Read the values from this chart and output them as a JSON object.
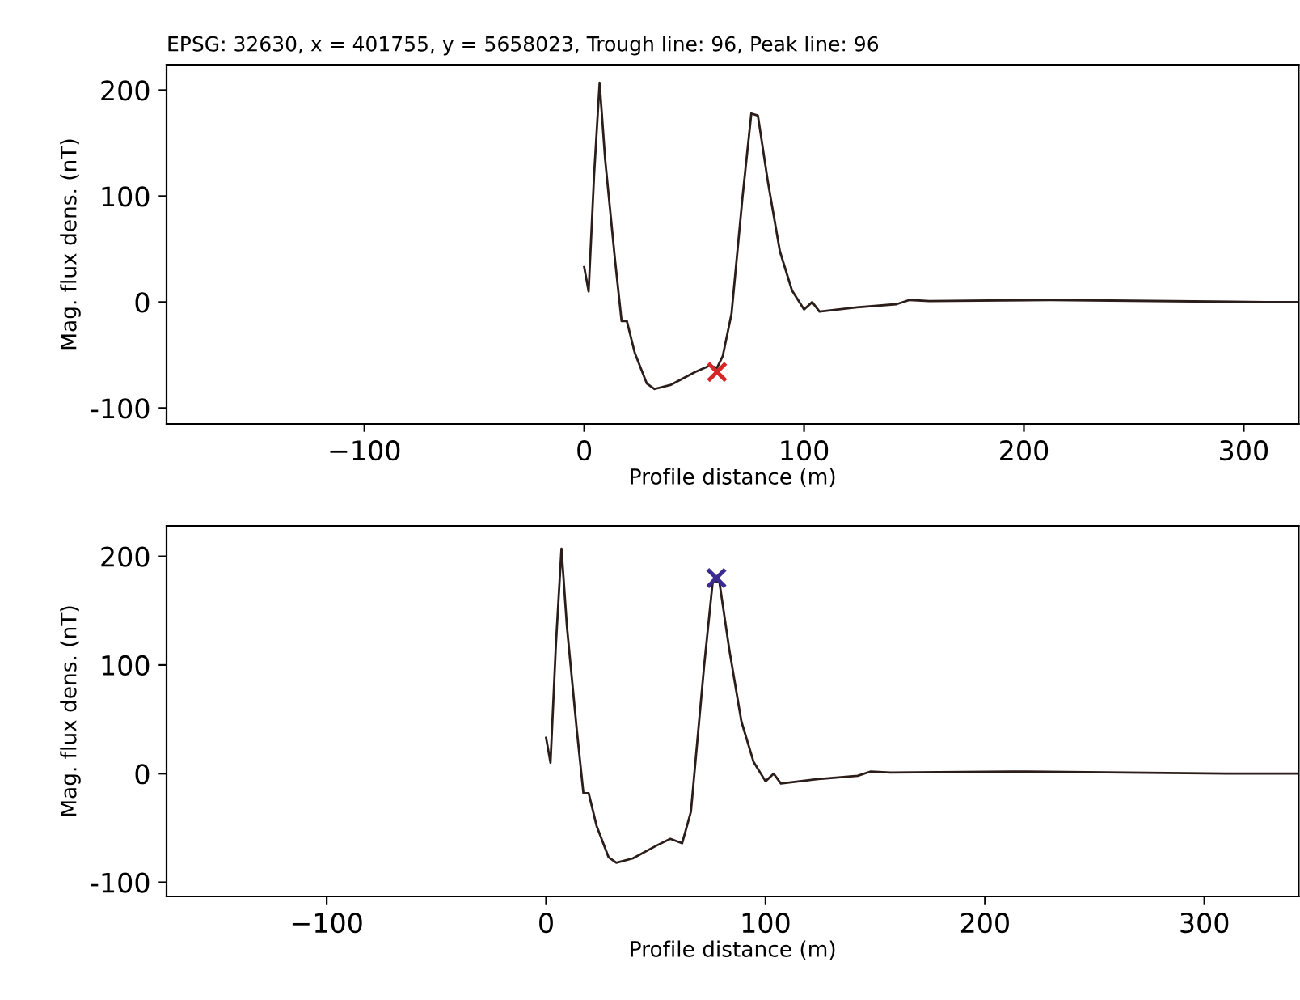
{
  "chart_data": [
    {
      "type": "line",
      "title": "EPSG: 32630, x = 401755, y = 5658023, Trough line: 96, Peak line: 96",
      "xlabel": "Profile distance (m)",
      "ylabel": "Mag. flux dens. (nT)",
      "xlim": [
        -190,
        325
      ],
      "ylim": [
        -115,
        224
      ],
      "xticks": [
        -100,
        0,
        100,
        200,
        300
      ],
      "yticks": [
        -100,
        0,
        100,
        200
      ],
      "grid": false,
      "series": [
        {
          "color": "#2b1d1a",
          "marker": "none",
          "line_style": "solid",
          "x": [
            0,
            2,
            4.5,
            7,
            9.5,
            14,
            17,
            19.4,
            23,
            28.5,
            32,
            39.5,
            50.5,
            57,
            60.4,
            63,
            67,
            72,
            76,
            79,
            83.5,
            89,
            94.5,
            100,
            103.7,
            107,
            124,
            142,
            148,
            157,
            212,
            310,
            325
          ],
          "values": [
            33,
            10,
            120,
            207,
            135,
            40,
            -18,
            -18,
            -48,
            -77,
            -82,
            -78,
            -66,
            -60,
            -62,
            -51,
            -11,
            99,
            178,
            176,
            114,
            48,
            11,
            -7,
            0,
            -9,
            -5,
            -2,
            2,
            1,
            2,
            0,
            0
          ]
        },
        {
          "type": "scatter",
          "color": "#d62728",
          "marker": "cross",
          "x": [
            60.4
          ],
          "values": [
            -66
          ]
        }
      ]
    },
    {
      "type": "line",
      "xlabel": "Profile distance (m)",
      "ylabel": "Mag. flux dens. (nT)",
      "xlim": [
        -173,
        343
      ],
      "ylim": [
        -113,
        228
      ],
      "xticks": [
        -100,
        0,
        100,
        200,
        300
      ],
      "yticks": [
        -100,
        0,
        100,
        200
      ],
      "grid": false,
      "series": [
        {
          "color": "#2b1d1a",
          "marker": "none",
          "line_style": "solid",
          "x": [
            0,
            2,
            4.5,
            7,
            9.5,
            14,
            17,
            19.4,
            23,
            28.5,
            32,
            39.5,
            50.5,
            56.6,
            62,
            66,
            72,
            76,
            79,
            83.5,
            89,
            94.5,
            100,
            103.7,
            107,
            124,
            142,
            148,
            157,
            212,
            310,
            343
          ],
          "values": [
            33,
            10,
            120,
            207,
            135,
            40,
            -18,
            -18,
            -48,
            -77,
            -82,
            -78,
            -66,
            -60,
            -64,
            -35,
            99,
            178,
            176,
            114,
            48,
            11,
            -7,
            0,
            -9,
            -5,
            -2,
            2,
            1,
            2,
            0,
            0
          ]
        },
        {
          "type": "scatter",
          "color": "#3b2a8f",
          "marker": "cross",
          "x": [
            77.6
          ],
          "values": [
            180
          ]
        }
      ]
    }
  ]
}
